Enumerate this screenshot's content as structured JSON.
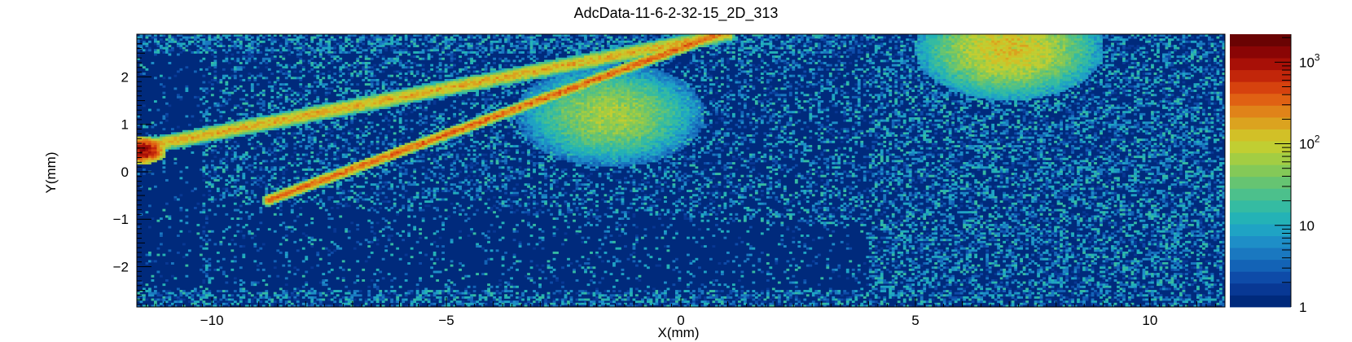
{
  "chart_data": {
    "type": "heatmap",
    "title": "AdcData-11-6-2-32-15_2D_313",
    "xlabel": "X(mm)",
    "ylabel": "Y(mm)",
    "xlim": [
      -11.6,
      11.6
    ],
    "ylim": [
      -2.85,
      2.9
    ],
    "x_ticks": [
      {
        "v": -10,
        "label": "−10"
      },
      {
        "v": -5,
        "label": "−5"
      },
      {
        "v": 0,
        "label": "0"
      },
      {
        "v": 5,
        "label": "5"
      },
      {
        "v": 10,
        "label": "10"
      }
    ],
    "y_ticks": [
      {
        "v": -2,
        "label": "−2"
      },
      {
        "v": -1,
        "label": "−1"
      },
      {
        "v": 0,
        "label": "0"
      },
      {
        "v": 1,
        "label": "1"
      },
      {
        "v": 2,
        "label": "2"
      }
    ],
    "colorbar": {
      "scale": "log",
      "range": [
        1,
        2200
      ],
      "ticks": [
        {
          "v": 1,
          "label": "1"
        },
        {
          "v": 10,
          "label": "10"
        },
        {
          "v": 100,
          "base": "10",
          "exp": "2"
        },
        {
          "v": 1000,
          "base": "10",
          "exp": "3"
        }
      ],
      "palette": [
        "#002a7c",
        "#083894",
        "#0e4ba8",
        "#1363b6",
        "#1a78c0",
        "#1e8ec7",
        "#1fa3c4",
        "#24b2b6",
        "#35bba2",
        "#4cc08c",
        "#66c472",
        "#84c958",
        "#a3cd43",
        "#c1ce32",
        "#d2c027",
        "#dba31f",
        "#e08319",
        "#e06113",
        "#d6420e",
        "#c2260a",
        "#a81007",
        "#8a0505",
        "#6a0303"
      ]
    },
    "bins": [
      382,
      128
    ],
    "features": [
      {
        "desc": "faint track",
        "from": [
          -11.6,
          0.5
        ],
        "to": [
          1.0,
          2.9
        ],
        "peak": 200,
        "width": 0.07
      },
      {
        "desc": "bright track",
        "from": [
          -8.8,
          -0.6
        ],
        "to": [
          0.8,
          2.9
        ],
        "peak": 400,
        "width": 0.05
      },
      {
        "desc": "edge hotspot",
        "at": [
          -11.5,
          0.45
        ],
        "peak": 1500
      },
      {
        "desc": "blob",
        "at": [
          -1.5,
          1.2
        ],
        "peak": 80
      },
      {
        "desc": "blob",
        "at": [
          7.0,
          2.6
        ],
        "peak": 150
      }
    ]
  }
}
